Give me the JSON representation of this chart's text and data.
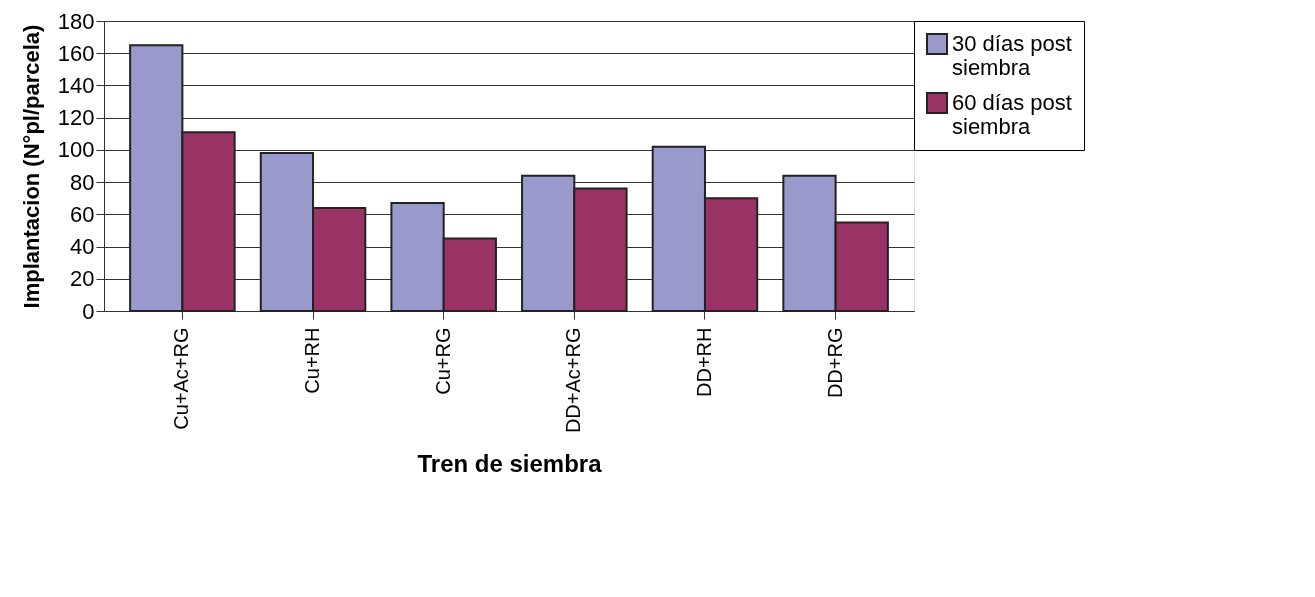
{
  "chart_data": {
    "type": "bar",
    "xlabel": "Tren de siembra",
    "ylabel": "Implantacion (N°pl/parcela)",
    "categories": [
      "Cu+Ac+RG",
      "Cu+RH",
      "Cu+RG",
      "DD+Ac+RG",
      "DD+RH",
      "DD+RG"
    ],
    "series": [
      {
        "name": "30 días post siembra",
        "color": "#9999cc",
        "values": [
          165,
          98,
          67,
          84,
          102,
          84
        ]
      },
      {
        "name": "60 días post siembra",
        "color": "#993366",
        "values": [
          111,
          64,
          45,
          76,
          70,
          55
        ]
      }
    ],
    "ylim": [
      0,
      180
    ],
    "yticks": [
      0,
      20,
      40,
      60,
      80,
      100,
      120,
      140,
      160,
      180
    ],
    "grid": "y",
    "legend": "right"
  }
}
